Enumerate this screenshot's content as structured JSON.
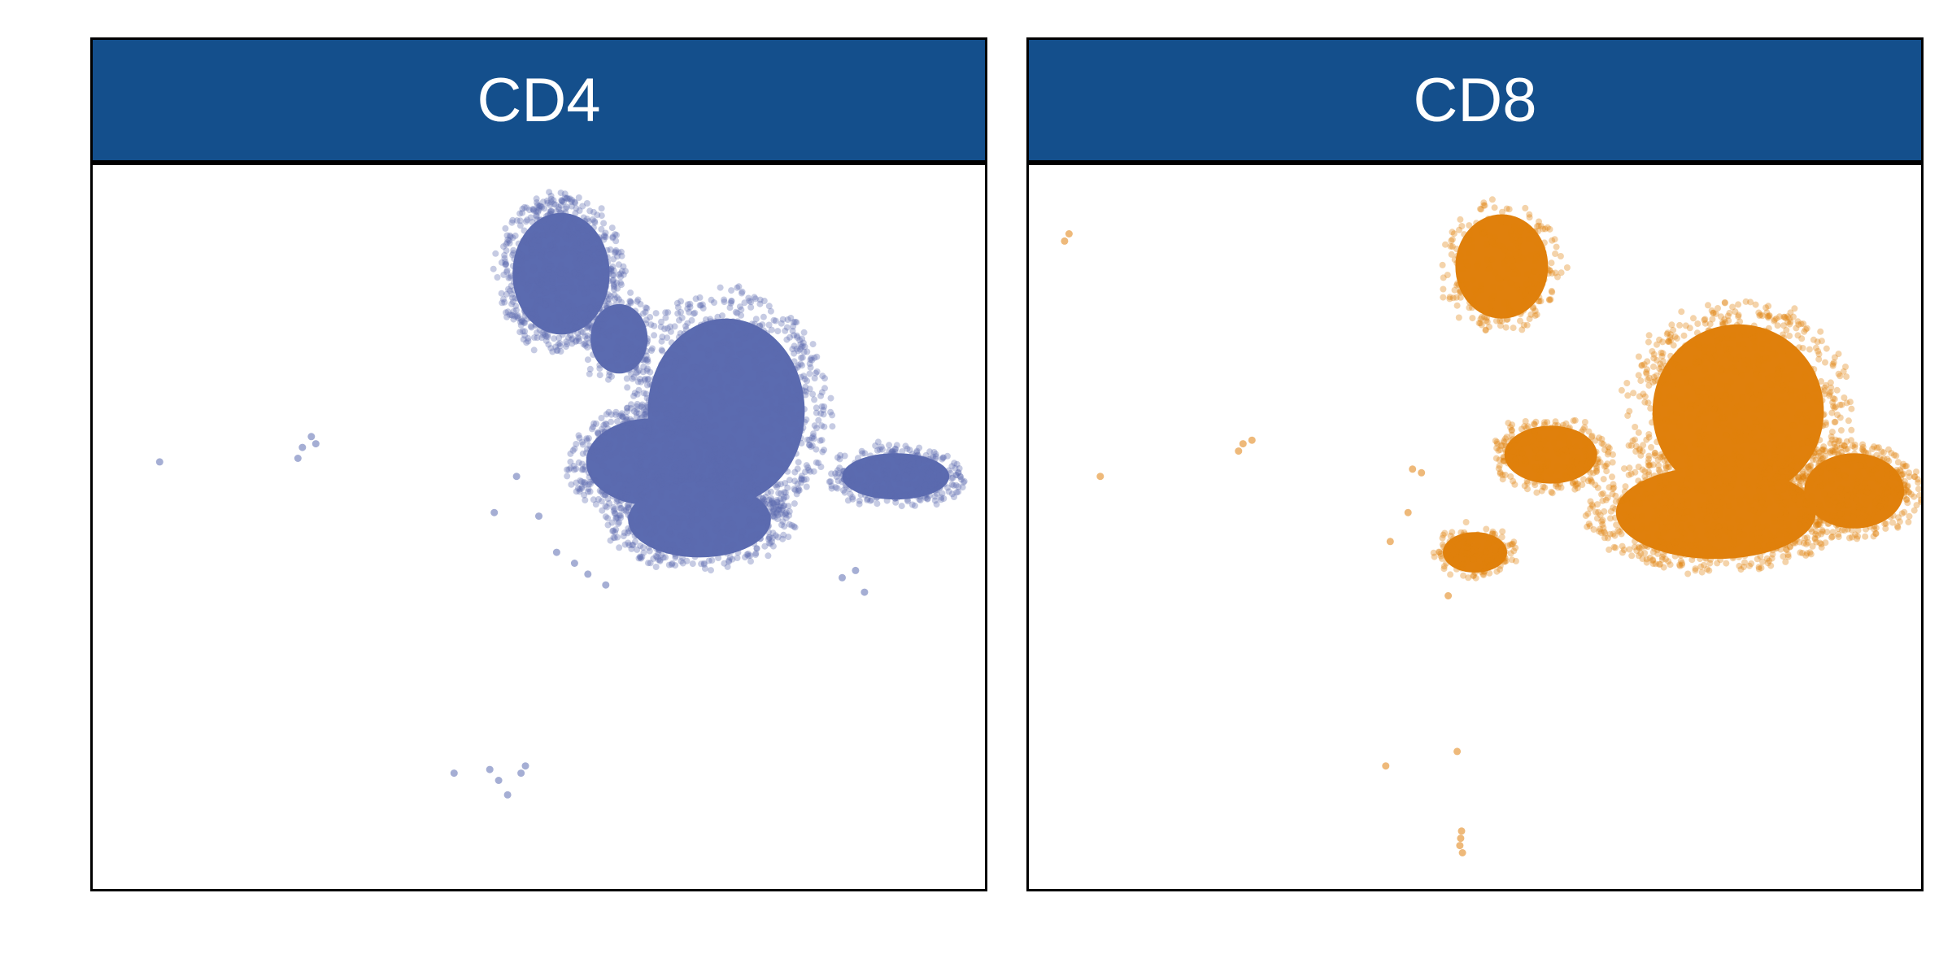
{
  "colors": {
    "strip": "#144F8C",
    "CD4": "#5B6BB0",
    "CD8": "#E0800C"
  },
  "chart_data": [
    {
      "type": "scatter",
      "title": "CD4",
      "xlabel": "",
      "ylabel": "",
      "xlim": [
        0,
        100
      ],
      "ylim": [
        0,
        100
      ],
      "grid": false,
      "color": "#5B6BB0",
      "dense_regions": [
        {
          "cx": 52.5,
          "cy": 85.0,
          "rx": 6.8,
          "ry": 10.5,
          "n": 700
        },
        {
          "cx": 59.0,
          "cy": 76.0,
          "rx": 4.0,
          "ry": 6.0,
          "n": 150
        },
        {
          "cx": 71.0,
          "cy": 66.0,
          "rx": 11.0,
          "ry": 16.0,
          "n": 1000
        },
        {
          "cx": 62.5,
          "cy": 59.0,
          "rx": 9.0,
          "ry": 7.5,
          "n": 550
        },
        {
          "cx": 68.0,
          "cy": 51.0,
          "rx": 10.0,
          "ry": 6.5,
          "n": 500
        },
        {
          "cx": 90.0,
          "cy": 57.0,
          "rx": 7.5,
          "ry": 4.0,
          "n": 320
        }
      ],
      "points": [
        [
          7.5,
          59.0
        ],
        [
          23.5,
          61.0
        ],
        [
          24.5,
          62.5
        ],
        [
          25.0,
          61.5
        ],
        [
          23.0,
          59.5
        ],
        [
          47.5,
          57.0
        ],
        [
          45.0,
          52.0
        ],
        [
          50.0,
          51.5
        ],
        [
          52.0,
          46.5
        ],
        [
          54.0,
          45.0
        ],
        [
          57.5,
          42.0
        ],
        [
          55.5,
          43.5
        ],
        [
          84.0,
          43.0
        ],
        [
          86.5,
          41.0
        ],
        [
          85.5,
          44.0
        ],
        [
          40.5,
          16.0
        ],
        [
          44.5,
          16.5
        ],
        [
          45.5,
          15.0
        ],
        [
          48.0,
          16.0
        ],
        [
          48.5,
          17.0
        ],
        [
          46.5,
          13.0
        ]
      ]
    },
    {
      "type": "scatter",
      "title": "CD8",
      "xlabel": "",
      "ylabel": "",
      "xlim": [
        0,
        100
      ],
      "ylim": [
        0,
        100
      ],
      "grid": false,
      "color": "#E0800C",
      "dense_regions": [
        {
          "cx": 79.5,
          "cy": 66.0,
          "rx": 12.0,
          "ry": 15.0,
          "n": 900
        },
        {
          "cx": 77.0,
          "cy": 52.0,
          "rx": 14.0,
          "ry": 8.0,
          "n": 750
        },
        {
          "cx": 92.5,
          "cy": 55.0,
          "rx": 7.0,
          "ry": 6.5,
          "n": 420
        },
        {
          "cx": 58.5,
          "cy": 60.0,
          "rx": 6.5,
          "ry": 5.0,
          "n": 260
        },
        {
          "cx": 50.0,
          "cy": 46.5,
          "rx": 4.5,
          "ry": 3.5,
          "n": 160
        },
        {
          "cx": 53.0,
          "cy": 86.0,
          "rx": 6.5,
          "ry": 9.0,
          "n": 260
        }
      ],
      "points": [
        [
          4.5,
          90.5
        ],
        [
          4.0,
          89.5
        ],
        [
          8.0,
          57.0
        ],
        [
          24.0,
          61.5
        ],
        [
          25.0,
          62.0
        ],
        [
          23.5,
          60.5
        ],
        [
          43.0,
          58.0
        ],
        [
          44.0,
          57.5
        ],
        [
          42.5,
          52.0
        ],
        [
          40.5,
          48.0
        ],
        [
          47.0,
          40.5
        ],
        [
          40.0,
          17.0
        ],
        [
          48.0,
          19.0
        ],
        [
          48.5,
          8.0
        ],
        [
          48.3,
          6.0
        ],
        [
          48.6,
          5.0
        ],
        [
          48.4,
          7.0
        ]
      ]
    }
  ]
}
